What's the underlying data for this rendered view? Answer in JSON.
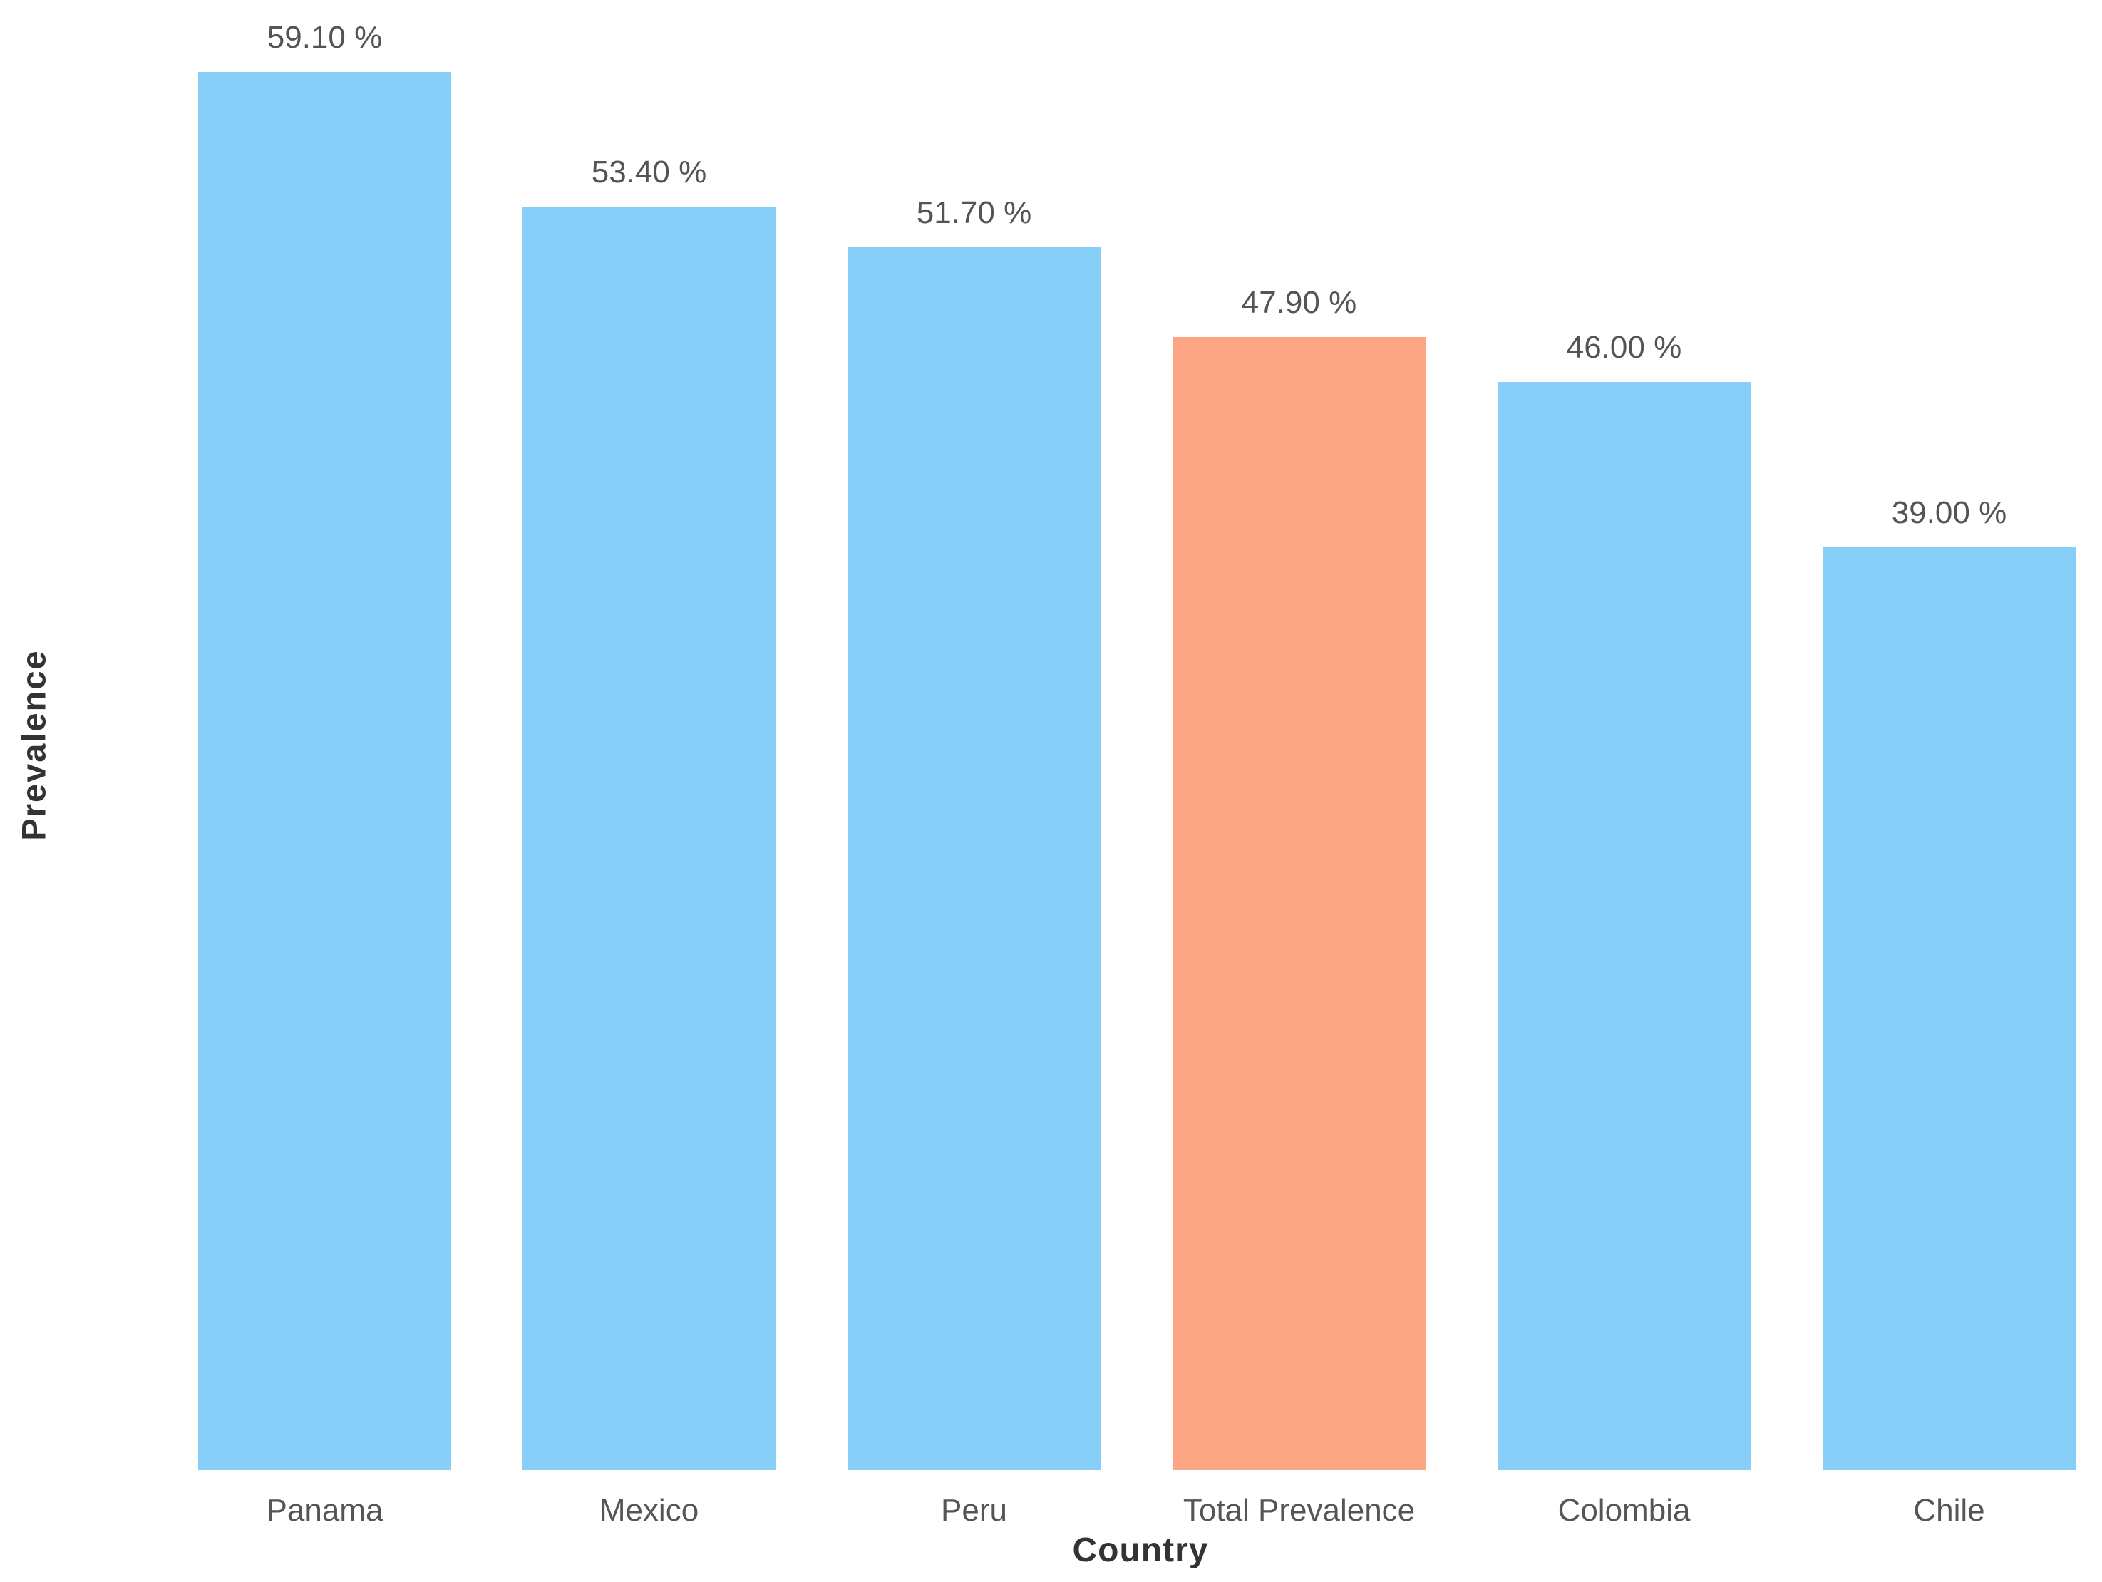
{
  "chart_data": {
    "type": "bar",
    "title": "",
    "categories": [
      "Panama",
      "Mexico",
      "Peru",
      "Total Prevalence",
      "Colombia",
      "Chile"
    ],
    "values": [
      59.1,
      53.4,
      51.7,
      47.9,
      46.0,
      39.0
    ],
    "value_labels": [
      "59.10 %",
      "53.40 %",
      "51.70 %",
      "47.90 %",
      "46.00 %",
      "39.00 %"
    ],
    "xlabel": "Country",
    "ylabel": "Prevalence",
    "ylim": [
      0,
      62
    ],
    "grid": false,
    "legend": "none",
    "axis_lines": false,
    "default_bar_color": "#87CFF9",
    "highlight_bar_color": "#FCA685",
    "highlight_index": 3,
    "bar_colors": [
      "#87CFF9",
      "#87CFF9",
      "#87CFF9",
      "#FCA685",
      "#87CFF9",
      "#87CFF9"
    ]
  },
  "colors": {
    "background": "#ffffff",
    "value_label_text": "#545454",
    "category_label_text": "#555555",
    "axis_title_text": "#333333"
  }
}
